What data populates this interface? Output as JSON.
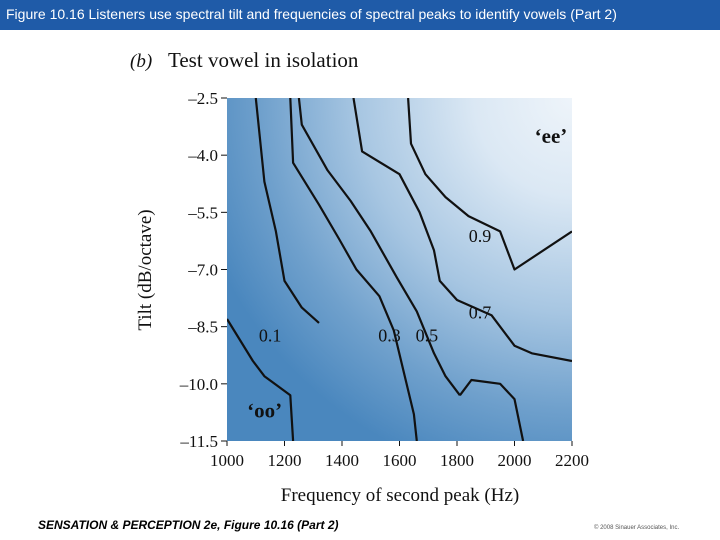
{
  "header": {
    "title": "Figure 10.16 Listeners use spectral tilt and frequencies of spectral peaks to identify vowels (Part 2)"
  },
  "footer": {
    "left": "SENSATION & PERCEPTION 2e, Figure 10.16 (Part 2)",
    "right": "© 2008 Sinauer Associates, Inc."
  },
  "chart_data": {
    "type": "contour",
    "panel_label": "(b)",
    "title": "Test vowel in isolation",
    "xlabel": "Frequency of second peak (Hz)",
    "ylabel": "Tilt (dB/octave)",
    "x_ticks": [
      1000,
      1200,
      1400,
      1600,
      1800,
      2000,
      2200
    ],
    "x_tick_labels": [
      "1000",
      "1200",
      "1400",
      "1600",
      "1800",
      "2000",
      "2200"
    ],
    "y_ticks": [
      -2.5,
      -4.0,
      -5.5,
      -7.0,
      -8.5,
      -10.0,
      -11.5
    ],
    "y_tick_labels": [
      "–2.5",
      "–4.0",
      "–5.5",
      "–7.0",
      "–8.5",
      "–10.0",
      "–11.5"
    ],
    "xlim": [
      1000,
      2200
    ],
    "ylim": [
      -11.5,
      -2.5
    ],
    "color_low": "#4a87be",
    "color_high": "#eef4fa",
    "contours": [
      {
        "level_label": "0.1",
        "label_at": [
          1150,
          -8.7
        ],
        "points": [
          [
            1000,
            -8.3
          ],
          [
            1090,
            -9.4
          ],
          [
            1130,
            -9.8
          ],
          [
            1220,
            -10.3
          ],
          [
            1230,
            -11.5
          ]
        ]
      },
      {
        "level_label": "0.1",
        "points": [
          [
            1100,
            -2.5
          ],
          [
            1130,
            -4.7
          ],
          [
            1170,
            -6.0
          ],
          [
            1200,
            -7.3
          ],
          [
            1260,
            -8.0
          ],
          [
            1320,
            -8.4
          ]
        ]
      },
      {
        "level_label": "0.3",
        "label_at": [
          1565,
          -8.7
        ],
        "points": [
          [
            1220,
            -2.5
          ],
          [
            1230,
            -4.2
          ],
          [
            1320,
            -5.3
          ],
          [
            1390,
            -6.2
          ],
          [
            1450,
            -7.0
          ],
          [
            1530,
            -7.7
          ],
          [
            1580,
            -8.6
          ],
          [
            1650,
            -10.8
          ],
          [
            1660,
            -11.5
          ]
        ]
      },
      {
        "level_label": "0.5",
        "label_at": [
          1695,
          -8.7
        ],
        "points": [
          [
            1250,
            -2.5
          ],
          [
            1260,
            -3.2
          ],
          [
            1350,
            -4.4
          ],
          [
            1430,
            -5.2
          ],
          [
            1500,
            -6.0
          ],
          [
            1590,
            -7.2
          ],
          [
            1660,
            -8.1
          ],
          [
            1720,
            -9.2
          ],
          [
            1760,
            -9.8
          ],
          [
            1810,
            -10.3
          ]
        ]
      },
      {
        "level_label": "0.5",
        "points": [
          [
            1810,
            -10.3
          ],
          [
            1850,
            -9.9
          ],
          [
            1950,
            -10.0
          ],
          [
            2000,
            -10.4
          ],
          [
            2030,
            -11.5
          ]
        ]
      },
      {
        "level_label": "0.7",
        "label_at": [
          1880,
          -8.1
        ],
        "points": [
          [
            1440,
            -2.5
          ],
          [
            1470,
            -3.9
          ],
          [
            1600,
            -4.5
          ],
          [
            1670,
            -5.5
          ],
          [
            1720,
            -6.5
          ],
          [
            1740,
            -7.3
          ],
          [
            1800,
            -7.8
          ],
          [
            1920,
            -8.2
          ],
          [
            2000,
            -9.0
          ],
          [
            2060,
            -9.2
          ],
          [
            2200,
            -9.4
          ]
        ]
      },
      {
        "level_label": "0.9",
        "label_at": [
          1880,
          -6.1
        ],
        "points": [
          [
            1630,
            -2.5
          ],
          [
            1640,
            -3.7
          ],
          [
            1690,
            -4.5
          ],
          [
            1760,
            -5.1
          ],
          [
            1840,
            -5.6
          ],
          [
            1950,
            -6.0
          ],
          [
            2000,
            -7.0
          ],
          [
            2200,
            -6.0
          ]
        ]
      }
    ],
    "annotations": [
      {
        "text": "‘ee’",
        "at": [
          2070,
          -3.5
        ]
      },
      {
        "text": "‘oo’",
        "at": [
          1070,
          -10.7
        ]
      }
    ]
  }
}
